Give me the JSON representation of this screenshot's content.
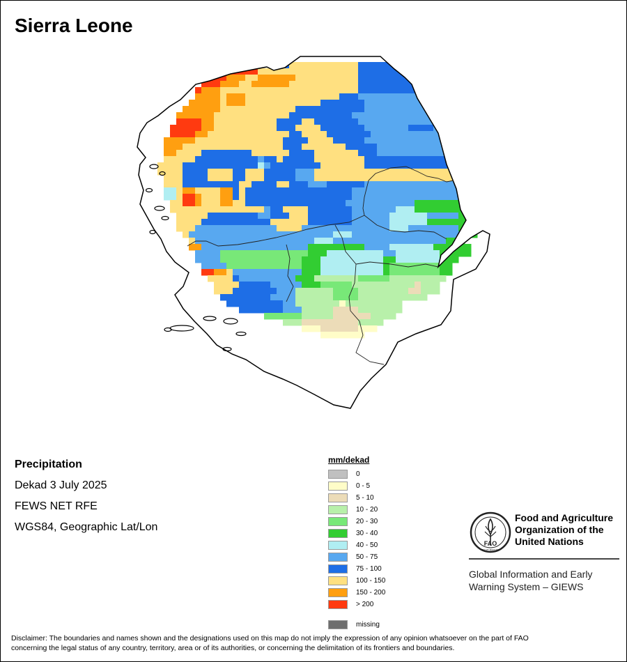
{
  "title": "Sierra Leone",
  "info": {
    "variable": "Precipitation",
    "period": "Dekad 3 July 2025",
    "source": "FEWS NET RFE",
    "projection": "WGS84, Geographic Lat/Lon"
  },
  "legend": {
    "title": "mm/dekad",
    "classes": [
      {
        "label": "0",
        "color": "#c0c0c0"
      },
      {
        "label": "0 - 5",
        "color": "#fffdc8"
      },
      {
        "label": "5 - 10",
        "color": "#ecdcb8"
      },
      {
        "label": "10 - 20",
        "color": "#b8f0aa"
      },
      {
        "label": "20 - 30",
        "color": "#78e878"
      },
      {
        "label": "30 - 40",
        "color": "#32cd32"
      },
      {
        "label": "40 - 50",
        "color": "#b0eef2"
      },
      {
        "label": "50 - 75",
        "color": "#58a8f0"
      },
      {
        "label": "75 - 100",
        "color": "#1e6ee6"
      },
      {
        "label": "100 - 150",
        "color": "#ffe080"
      },
      {
        "label": "150 - 200",
        "color": "#ff9f10"
      },
      {
        "label": "> 200",
        "color": "#ff3a10"
      }
    ],
    "missing": {
      "label": "missing",
      "color": "#6e6e6e"
    }
  },
  "organization": {
    "name_line1": "Food and Agriculture",
    "name_line2": "Organization of the",
    "name_line3": "United Nations",
    "logo_letters": "FAO",
    "logo_motto": "FIAT PANIS",
    "system_line1": "Global Information and Early",
    "system_line2": "Warning System – GIEWS"
  },
  "disclaimer_line1": "Disclaimer: The boundaries and names shown and the designations used on this map do not imply the expression of any opinion whatsoever on the part of FAO",
  "disclaimer_line2": "concerning the legal status of any country, territory, area or of its authorities, or concerning the delimitation of its frontiers and boundaries.",
  "map": {
    "icon": "rainfall-raster-map",
    "grid_rows": [
      "..........................................................",
      "..........................................................",
      ".........................BYYYYYYYYYYYBBBBBBB..............",
      "...............RRRRRRYYYYYYYYYYYYYYYYBBBBBBBBBB...........",
      ".............RRROOOYYOOOOOOYYYYYYYYYYBBBBBBBBBBB..........",
      "............RRROOOYYOOOOOOYYYYYYYYYYYBBBBBBBBBBB..........",
      "...........ROOOYYYYYYYYYYYYYYYYYYYYYYBBBBBBBBBBB..........",
      "...........OOOOYOOOYYYYYYYYYYYYYYYBBBLLLLLLLLLL...........",
      "..........OOOOOYOOOYYYYYYYYYYYYBBBBBBBLLLLLLLLLLL.........",
      ".........OOOOOOYYYYYYYYYYYYBBBBBBBBBBBLLLLLLLLLLLL........",
      "........OOOOOOYYYYYYYYYYYYBBBBBBBBBBLLLLLLLLLLLLLLL.......",
      "........RRRROOYYYYYYYYYYBBBBYYBBBBBBBLLLLLLLLLLLLLL.......",
      ".......RRRRROOYYYYYYYYYYBBBYYYYBBBBBBBLLLLLLLBBBBLL.......",
      ".......RRRROOYYYYYYYYYYYYYBBYYYYBBBBBBBLLLLLLLLLLLLLL......",
      "......OOOOOYYYYYYYYYYYYYYBBBBYYYYBBBBBLLLLLLLLLLLLLLLL.....",
      "......OOOYYYYYYYYYYYYYYYYBBBYYYYYYYBBBBBLLLLLLLLLLLLLLL....",
      "......OOYYYYBBBBBBBBYYYYYYBBBBYYYYYYYBBBLLLLLLLLLLLLLLLL...",
      "......YYYYYBBBBBBBBBBLBBYBBBBBYYYYYYYYBBBBBBBBBBBBBBBBB....",
      ".....YYYYBBBBBBBBBBBBCLBBBBBBBBYYYYYYYBBBBBBBBBBBBBBBBBB...",
      ".....YYYYBBBBYYYYBBYYYBBBBBLLLYYYYYYYYYYYYYYYYYYYYYYYYYY...",
      "......YYYBBBBYYYYBBYYYBBBBBLLLYYYYYYYYYYYYYYYYYYYYYYYYY....",
      "......YYYBBBBBBBBBYYBBBBYYBBBLLLBBBBBBLLLLLLLLLLLLLLLYY.....",
      "......CCYOOYYYYOOBYBBBBBBBBBBBBBBBBBLLLLLLLLLLLLLLLLLG...GG",
      "......CCYRROYYYOOBYBBBBBBBBBBBBBBBBBLLLLLLLLLLLLLLLLLG..GGG",
      ".......YYRROYYYOOYYBBBBBBBBBBBBBBBBLLLLLLLLLLLGGGGGGGGGGGGG",
      ".......YYYYYYYYYYYYYYYLBBYYYYBBBBBBBLLLLLLLCCCGGGGGGGGGGGGG",
      "........YYYYYBBBBBBBBLLBBBYYYBBBBBBBLLLLLLCCCCCCLLLLLGGGGG.",
      "........YYYYBBBBBBBBBBBYYYYYYBBBBBBBLLLLLLCCCCCCGGGGGGGGG..",
      "........YYYLLLLLLLLLLLLLYYYYLLLLLLLLLLLLLLCCCLLLLLLLLGGG...",
      ".........YLLLLLLLLLLLLLLLLLLLLLLLCCCLLLLLLLLLLLLLLLLLLGG...",
      "..........YLLLLLLLLLLLLLLLLLLLCCCLLLLLLLLLLLLLLLLLLGGG.....",
      "..........OOLLLLLLLLLLLLLLLLLGGGGGGGGGLLLLCCCCCCCGGGGGG....",
      "...........LLLLMMMMMMMMMMMMMMGGGCCCCCCCCCLLCCCCCCCGGGGG.....",
      "...........LLLLMMMMMMMMMMMMMGGGCCCCCCCCCCGGCCCCCCCGGG......",
      "............LLLLMMMMMMMMMMMMGGGCCCCCCCCCCGMMMMMMMMGG.......",
      "............RROOYLLLLLLLLLLLGGGCCCCCCCCCCGMMMMMMMMGG.......",
      ".............YYYYBLLLLLLLLLGGGKKKKKKKMMMMMKKKKKKKKK........",
      "..............YYYYBBBBBLLLLLGGGMMMMMKKKKKKKKKKWKKK.........",
      "..............YYYBBBBBBBLLLKKKKKKMMMMKKKKKKKKWWKKK.........",
      "...............BBBBBBBBLLLLKKKKKKMMMMKKKKKKKKKKK...........",
      "................BBBBBBBBBLLKKKKKKKZKKKKKKKKK...............",
      "..................BBBBBBBLLLKKKKKWWWWKKKKKKK...............",
      "......................MMMMMMKKKKKWWWWWWKKKK................",
      ".........................KKKWWWWWWWWWKKKK.................",
      "............................ZZZWWWWWWZZZ..................",
      "...............................ZZZZZZZ...................."
    ]
  }
}
